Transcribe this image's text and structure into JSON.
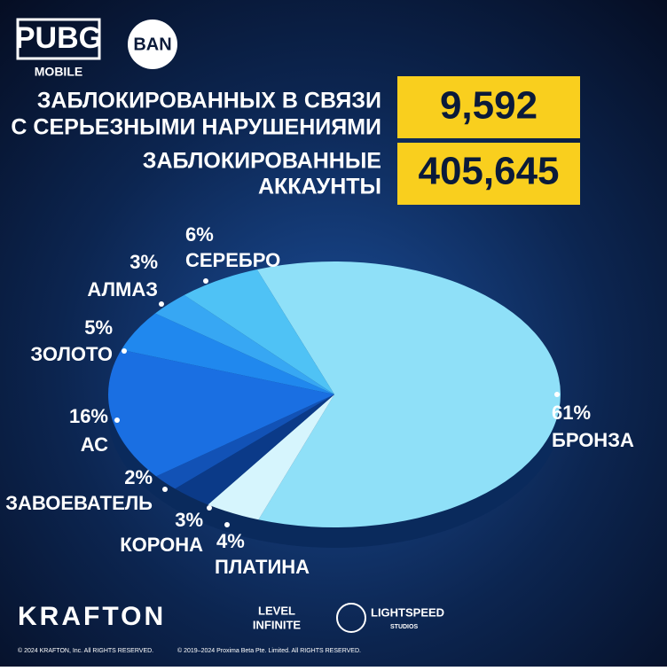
{
  "brand": {
    "logo": "PUBG",
    "logo_sub": "MOBILE",
    "badge": "BAN"
  },
  "stats": [
    {
      "label_lines": [
        "ЗАБЛОКИРОВАННЫХ В СВЯЗИ",
        "С СЕРЬЕЗНЫМИ НАРУШЕНИЯМИ"
      ],
      "value": "9,592"
    },
    {
      "label_lines": [
        "ЗАБЛОКИРОВАННЫЕ",
        "АККАУНТЫ"
      ],
      "value": "405,645"
    }
  ],
  "chart_data": {
    "type": "pie",
    "categories": [
      "БРОНЗА",
      "ПЛАТИНА",
      "КОРОНА",
      "ЗАВОЕВАТЕЛЬ",
      "АС",
      "ЗОЛОТО",
      "АЛМАЗ",
      "СЕРЕБРО"
    ],
    "values": [
      61,
      4,
      3,
      2,
      16,
      5,
      3,
      6
    ],
    "value_labels": [
      "61%",
      "4%",
      "3%",
      "2%",
      "16%",
      "5%",
      "3%",
      "6%"
    ],
    "colors": [
      "#8fe0f8",
      "#d6f5fd",
      "#0b3a88",
      "#1252b6",
      "#1a6fe2",
      "#2088ee",
      "#37a7f3",
      "#4fc2f5"
    ]
  },
  "footer": {
    "krafton": "KRAFTON",
    "level": "LEVEL",
    "infinite": "INFINITE",
    "lightspeed": "LIGHTSPEED",
    "studios": "STUDIOS",
    "copyright_1": "© 2024 KRAFTON, Inc. All RIGHTS RESERVED.",
    "copyright_2": "© 2019–2024 Proxima Beta Pte. Limited. All RIGHTS RESERVED."
  }
}
